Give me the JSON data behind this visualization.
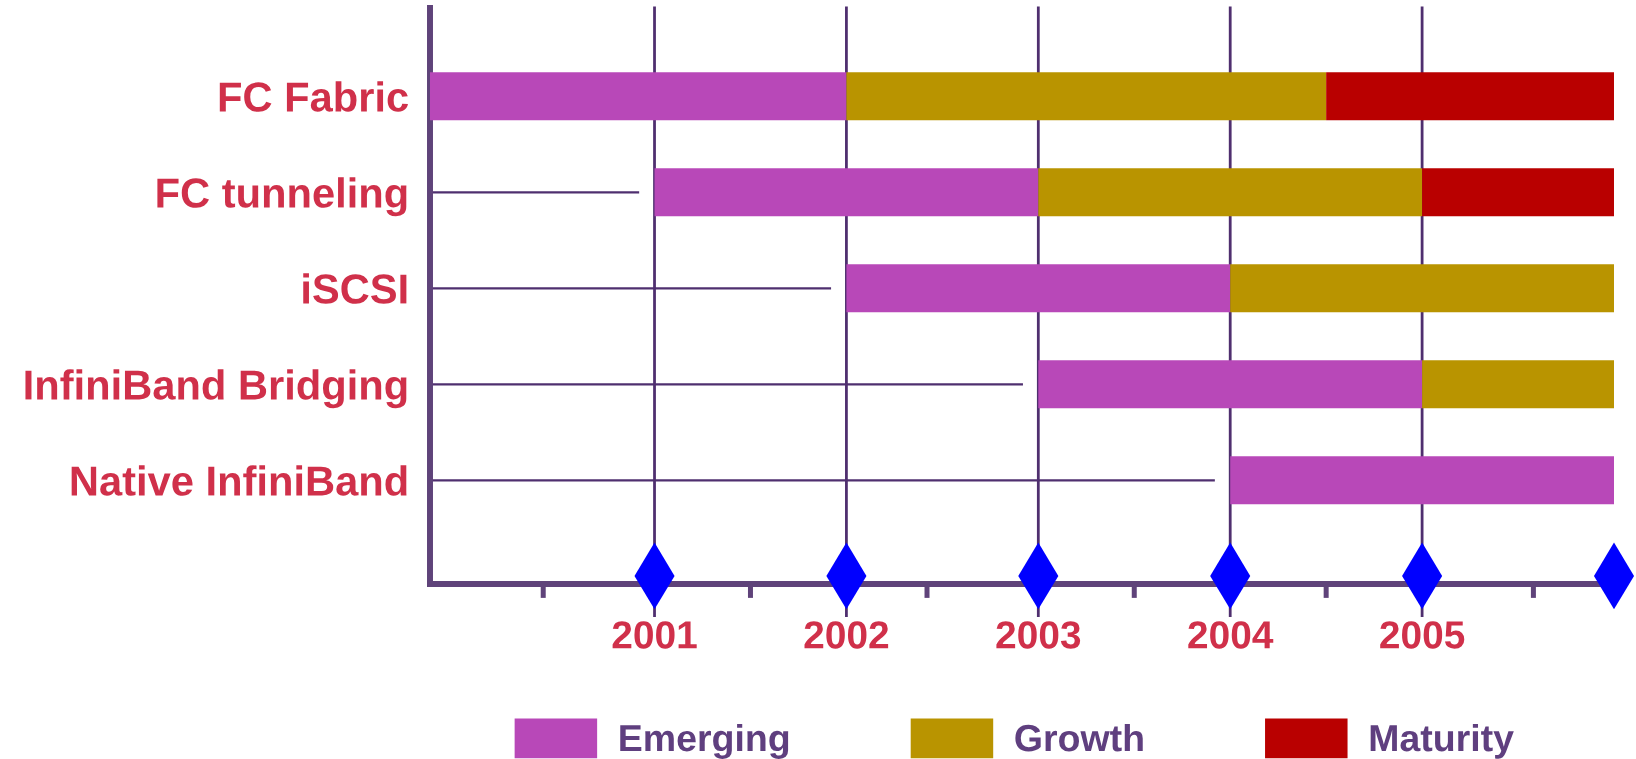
{
  "chart_data": {
    "type": "bar",
    "orientation": "horizontal",
    "categories": [
      "FC Fabric",
      "FC tunneling",
      "iSCSI",
      "InfiniBand Bridging",
      "Native InfiniBand"
    ],
    "series": [
      {
        "name": "Emerging",
        "color": "#b848b8",
        "base": [
          1999.83,
          2001,
          2002,
          2003,
          2004
        ],
        "values": [
          2.17,
          2,
          2,
          2,
          2
        ]
      },
      {
        "name": "Growth",
        "color": "#b99400",
        "base": [
          2002,
          2003,
          2004,
          2005,
          null
        ],
        "values": [
          2.5,
          2,
          2,
          1,
          null
        ]
      },
      {
        "name": "Maturity",
        "color": "#b90000",
        "base": [
          2004.5,
          2005,
          null,
          null,
          null
        ],
        "values": [
          1.5,
          1,
          null,
          null,
          null
        ]
      },
      {
        "color": "#4f2f6f",
        "base": [
          null,
          1999.83,
          1999.83,
          1999.83,
          1999.83
        ],
        "values": [
          null,
          1.09,
          2.09,
          3.09,
          4.09
        ]
      }
    ],
    "xlim": [
      1999.83,
      2006
    ],
    "xticks": [
      {
        "value": 2000.42,
        "label": null
      },
      2001,
      {
        "value": 2001.5,
        "label": null
      },
      2002,
      {
        "value": 2002.42,
        "label": null
      },
      2003,
      {
        "value": 2003.5,
        "label": null
      },
      2004,
      {
        "value": 2004.5,
        "label": null
      },
      2005,
      {
        "value": 2005.58,
        "label": null
      },
      {
        "value": 2006,
        "label": null
      }
    ],
    "ref_lines": [
      {
        "axis": "x",
        "value": 2001,
        "color": "#4f2f6f"
      },
      {
        "axis": "x",
        "value": 2002,
        "color": "#4f2f6f"
      },
      {
        "axis": "x",
        "value": 2003,
        "color": "#4f2f6f"
      },
      {
        "axis": "x",
        "value": 2004,
        "color": "#4f2f6f"
      },
      {
        "axis": "x",
        "value": 2005,
        "color": "#4f2f6f"
      }
    ],
    "legend": "bottom"
  }
}
